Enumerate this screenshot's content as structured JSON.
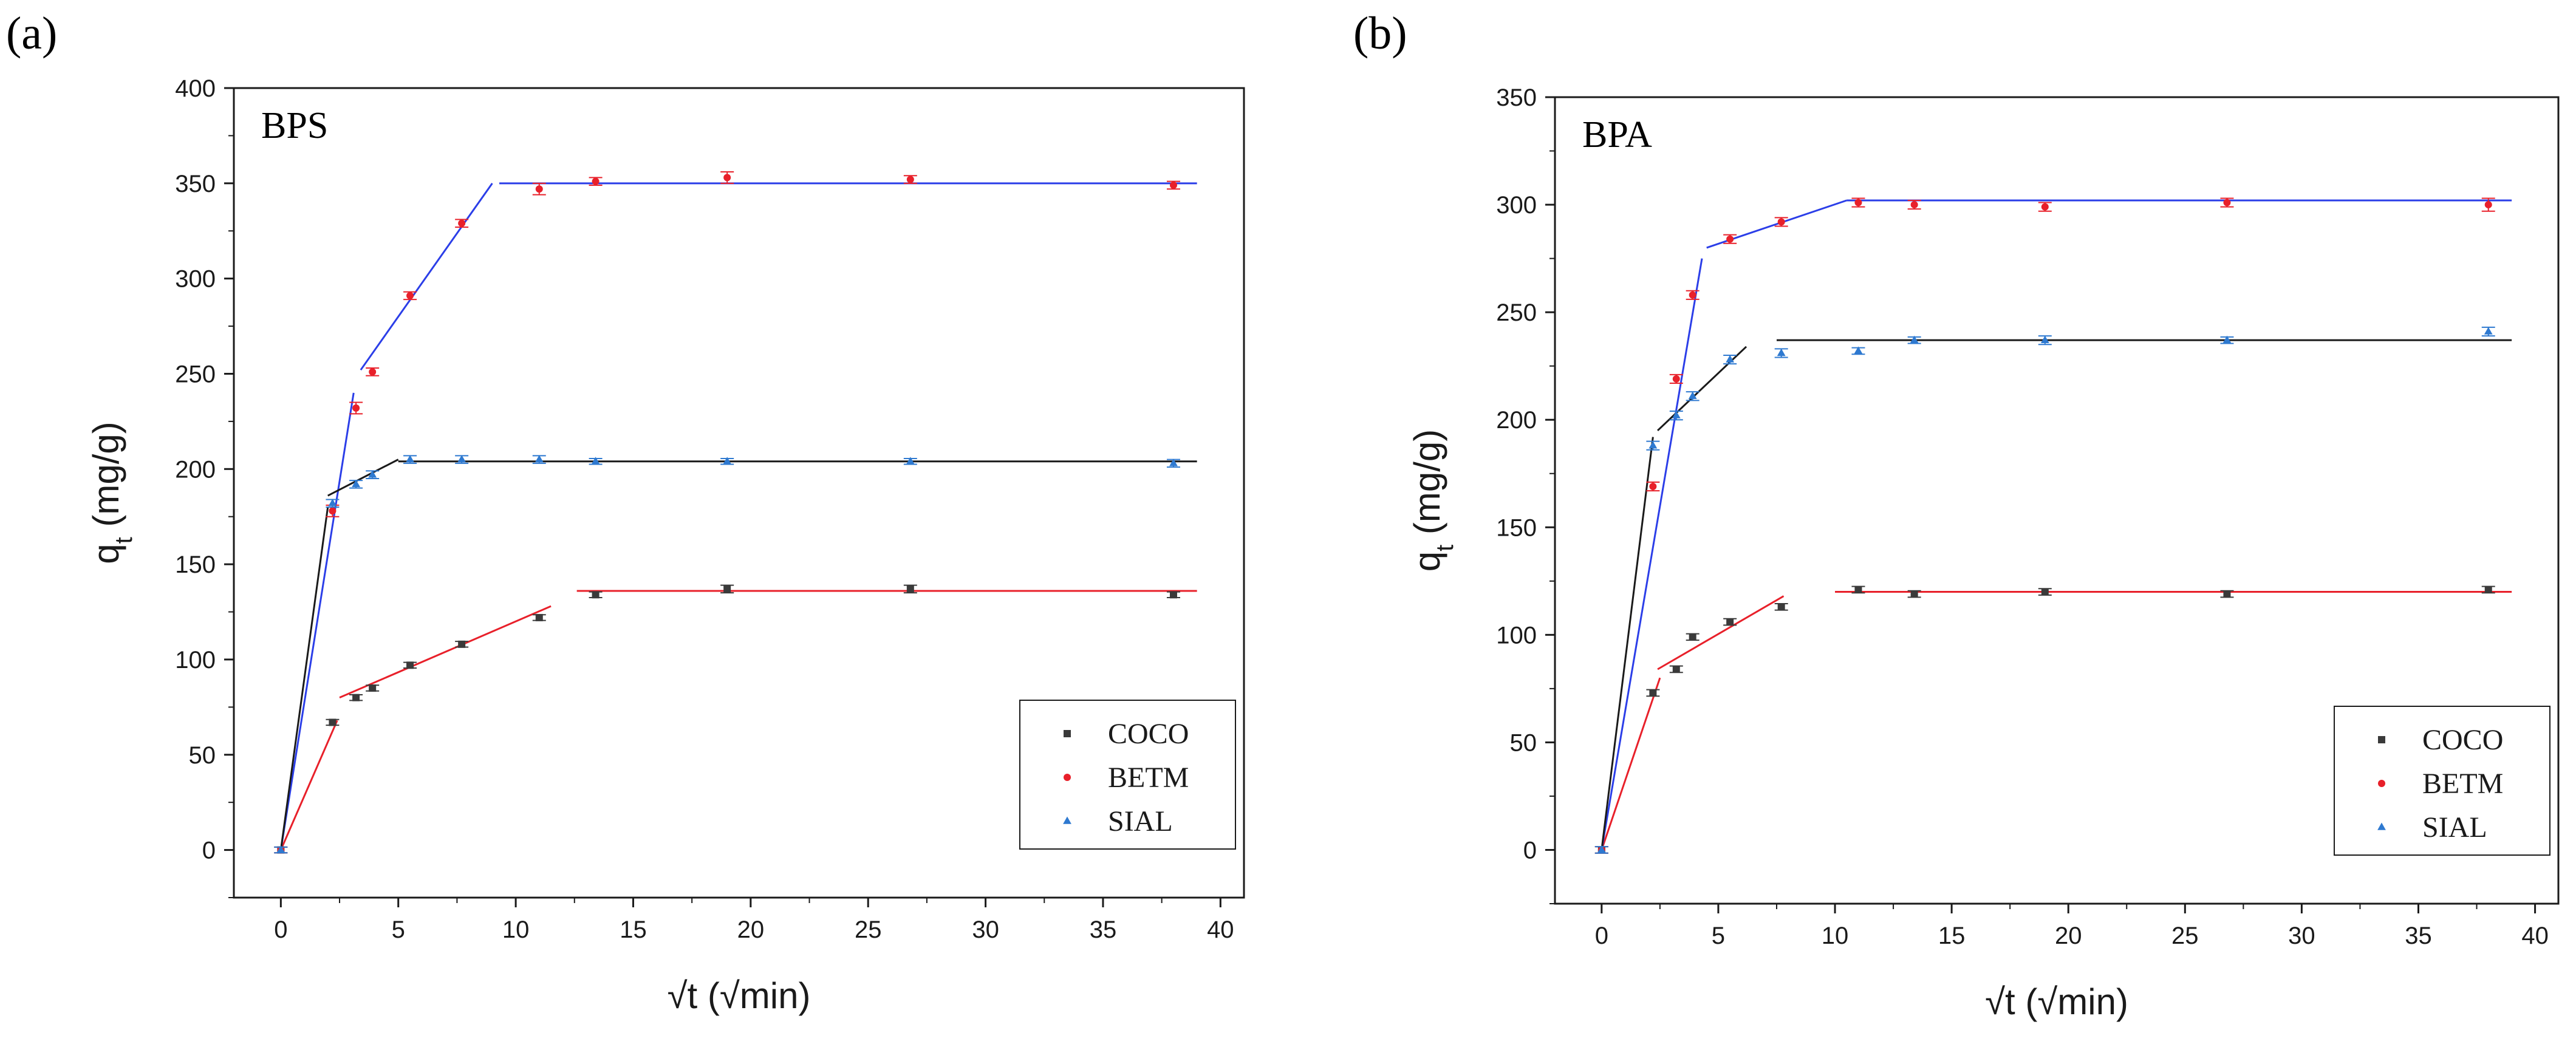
{
  "chart_data": [
    {
      "panel_label": "(a)",
      "type": "scatter",
      "title": "BPS",
      "xlabel": "√t (√min)",
      "ylabel": "q",
      "ylabel_sub": "t",
      "ylabel_unit": " (mg/g)",
      "xlim": [
        -2,
        41
      ],
      "ylim": [
        -25,
        400
      ],
      "x_ticks": [
        0,
        5,
        10,
        15,
        20,
        25,
        30,
        35,
        40
      ],
      "y_ticks": [
        0,
        50,
        100,
        150,
        200,
        250,
        300,
        350,
        400
      ],
      "legend_position": "bottom-right",
      "series": [
        {
          "name": "COCO",
          "color": "#3a3a3a",
          "marker": "square",
          "points": [
            [
              0,
              0
            ],
            [
              2.2,
              67
            ],
            [
              3.2,
              80
            ],
            [
              3.9,
              85
            ],
            [
              5.5,
              97
            ],
            [
              7.7,
              108
            ],
            [
              11.0,
              122
            ],
            [
              13.4,
              134
            ],
            [
              19.0,
              137
            ],
            [
              26.8,
              137
            ],
            [
              38.0,
              134
            ]
          ],
          "errors": [
            1.5,
            1.5,
            1.5,
            1.5,
            1.5,
            1.5,
            1.5,
            1.5,
            2,
            2,
            1.5
          ],
          "fit_color": "#e8202a",
          "fit_segments": [
            [
              [
                0,
                0
              ],
              [
                2.4,
                68
              ]
            ],
            [
              [
                2.5,
                80
              ],
              [
                11.5,
                128
              ]
            ],
            [
              [
                12.6,
                136
              ],
              [
                39,
                136
              ]
            ]
          ]
        },
        {
          "name": "BETM",
          "color": "#e8202a",
          "marker": "circle",
          "points": [
            [
              0,
              0
            ],
            [
              2.2,
              178
            ],
            [
              3.2,
              232
            ],
            [
              3.9,
              251
            ],
            [
              5.5,
              291
            ],
            [
              7.7,
              329
            ],
            [
              11.0,
              347
            ],
            [
              13.4,
              351
            ],
            [
              19.0,
              353
            ],
            [
              26.8,
              352
            ],
            [
              38.0,
              349
            ]
          ],
          "errors": [
            1.5,
            3,
            3,
            2,
            2,
            2,
            3,
            2,
            3,
            2,
            2
          ],
          "fit_color": "#2b3ee8",
          "fit_segments": [
            [
              [
                0,
                0
              ],
              [
                3.1,
                240
              ]
            ],
            [
              [
                3.4,
                252
              ],
              [
                9.0,
                350
              ]
            ],
            [
              [
                9.3,
                350
              ],
              [
                39,
                350
              ]
            ]
          ]
        },
        {
          "name": "SIAL",
          "color": "#2e79d0",
          "marker": "triangle",
          "points": [
            [
              0,
              0
            ],
            [
              2.2,
              182
            ],
            [
              3.2,
              192
            ],
            [
              3.9,
              197
            ],
            [
              5.5,
              205
            ],
            [
              7.7,
              205
            ],
            [
              11.0,
              205
            ],
            [
              13.4,
              204
            ],
            [
              19.0,
              204
            ],
            [
              26.8,
              204
            ],
            [
              38.0,
              203
            ]
          ],
          "errors": [
            1.5,
            2,
            2,
            2,
            2,
            2,
            2,
            1.5,
            1.5,
            1.5,
            2
          ],
          "fit_color": "#1a1a1a",
          "fit_segments": [
            [
              [
                0,
                0
              ],
              [
                2.0,
                180
              ]
            ],
            [
              [
                2.0,
                186
              ],
              [
                5.0,
                205
              ]
            ],
            [
              [
                5.0,
                204
              ],
              [
                39,
                204
              ]
            ]
          ]
        }
      ]
    },
    {
      "panel_label": "(b)",
      "type": "scatter",
      "title": "BPA",
      "xlabel": "√t (√min)",
      "ylabel": "q",
      "ylabel_sub": "t",
      "ylabel_unit": " (mg/g)",
      "xlim": [
        -2,
        41
      ],
      "ylim": [
        -25,
        350
      ],
      "x_ticks": [
        0,
        5,
        10,
        15,
        20,
        25,
        30,
        35,
        40
      ],
      "y_ticks": [
        0,
        50,
        100,
        150,
        200,
        250,
        300,
        350
      ],
      "legend_position": "bottom-right",
      "series": [
        {
          "name": "COCO",
          "color": "#3a3a3a",
          "marker": "square",
          "points": [
            [
              0,
              0
            ],
            [
              2.2,
              73
            ],
            [
              3.2,
              84
            ],
            [
              3.9,
              99
            ],
            [
              5.5,
              106
            ],
            [
              7.7,
              113
            ],
            [
              11.0,
              121
            ],
            [
              13.4,
              119
            ],
            [
              19.0,
              120
            ],
            [
              26.8,
              119
            ],
            [
              38.0,
              121
            ]
          ],
          "errors": [
            1.5,
            1.5,
            1.5,
            1.5,
            1.5,
            1.5,
            1.5,
            1.5,
            1.5,
            1.5,
            1.5
          ],
          "fit_color": "#e8202a",
          "fit_segments": [
            [
              [
                0,
                0
              ],
              [
                2.5,
                80
              ]
            ],
            [
              [
                2.4,
                84
              ],
              [
                7.8,
                118
              ]
            ],
            [
              [
                10.0,
                120
              ],
              [
                39,
                120
              ]
            ]
          ]
        },
        {
          "name": "BETM",
          "color": "#e8202a",
          "marker": "circle",
          "points": [
            [
              0,
              0
            ],
            [
              2.2,
              169
            ],
            [
              3.2,
              219
            ],
            [
              3.9,
              258
            ],
            [
              5.5,
              284
            ],
            [
              7.7,
              292
            ],
            [
              11.0,
              301
            ],
            [
              13.4,
              300
            ],
            [
              19.0,
              299
            ],
            [
              26.8,
              301
            ],
            [
              38.0,
              300
            ]
          ],
          "errors": [
            1.5,
            2,
            2,
            2,
            2,
            2,
            2,
            2,
            2,
            2,
            3
          ],
          "fit_color": "#2b3ee8",
          "fit_segments": [
            [
              [
                0,
                0
              ],
              [
                4.3,
                275
              ]
            ],
            [
              [
                4.5,
                280
              ],
              [
                10.5,
                302
              ]
            ],
            [
              [
                10.5,
                302
              ],
              [
                39,
                302
              ]
            ]
          ]
        },
        {
          "name": "SIAL",
          "color": "#2e79d0",
          "marker": "triangle",
          "points": [
            [
              0,
              0
            ],
            [
              2.2,
              188
            ],
            [
              3.2,
              202
            ],
            [
              3.9,
              211
            ],
            [
              5.5,
              228
            ],
            [
              7.7,
              231
            ],
            [
              11.0,
              232
            ],
            [
              13.4,
              237
            ],
            [
              19.0,
              237
            ],
            [
              26.8,
              237
            ],
            [
              38.0,
              241
            ]
          ],
          "errors": [
            1.5,
            2,
            2,
            2,
            2,
            2,
            1.5,
            1.5,
            2,
            1.5,
            2
          ],
          "fit_color": "#1a1a1a",
          "fit_segments": [
            [
              [
                0,
                0
              ],
              [
                2.2,
                192
              ]
            ],
            [
              [
                2.4,
                195
              ],
              [
                6.2,
                234
              ]
            ],
            [
              [
                7.5,
                237
              ],
              [
                39,
                237
              ]
            ]
          ]
        }
      ]
    }
  ]
}
